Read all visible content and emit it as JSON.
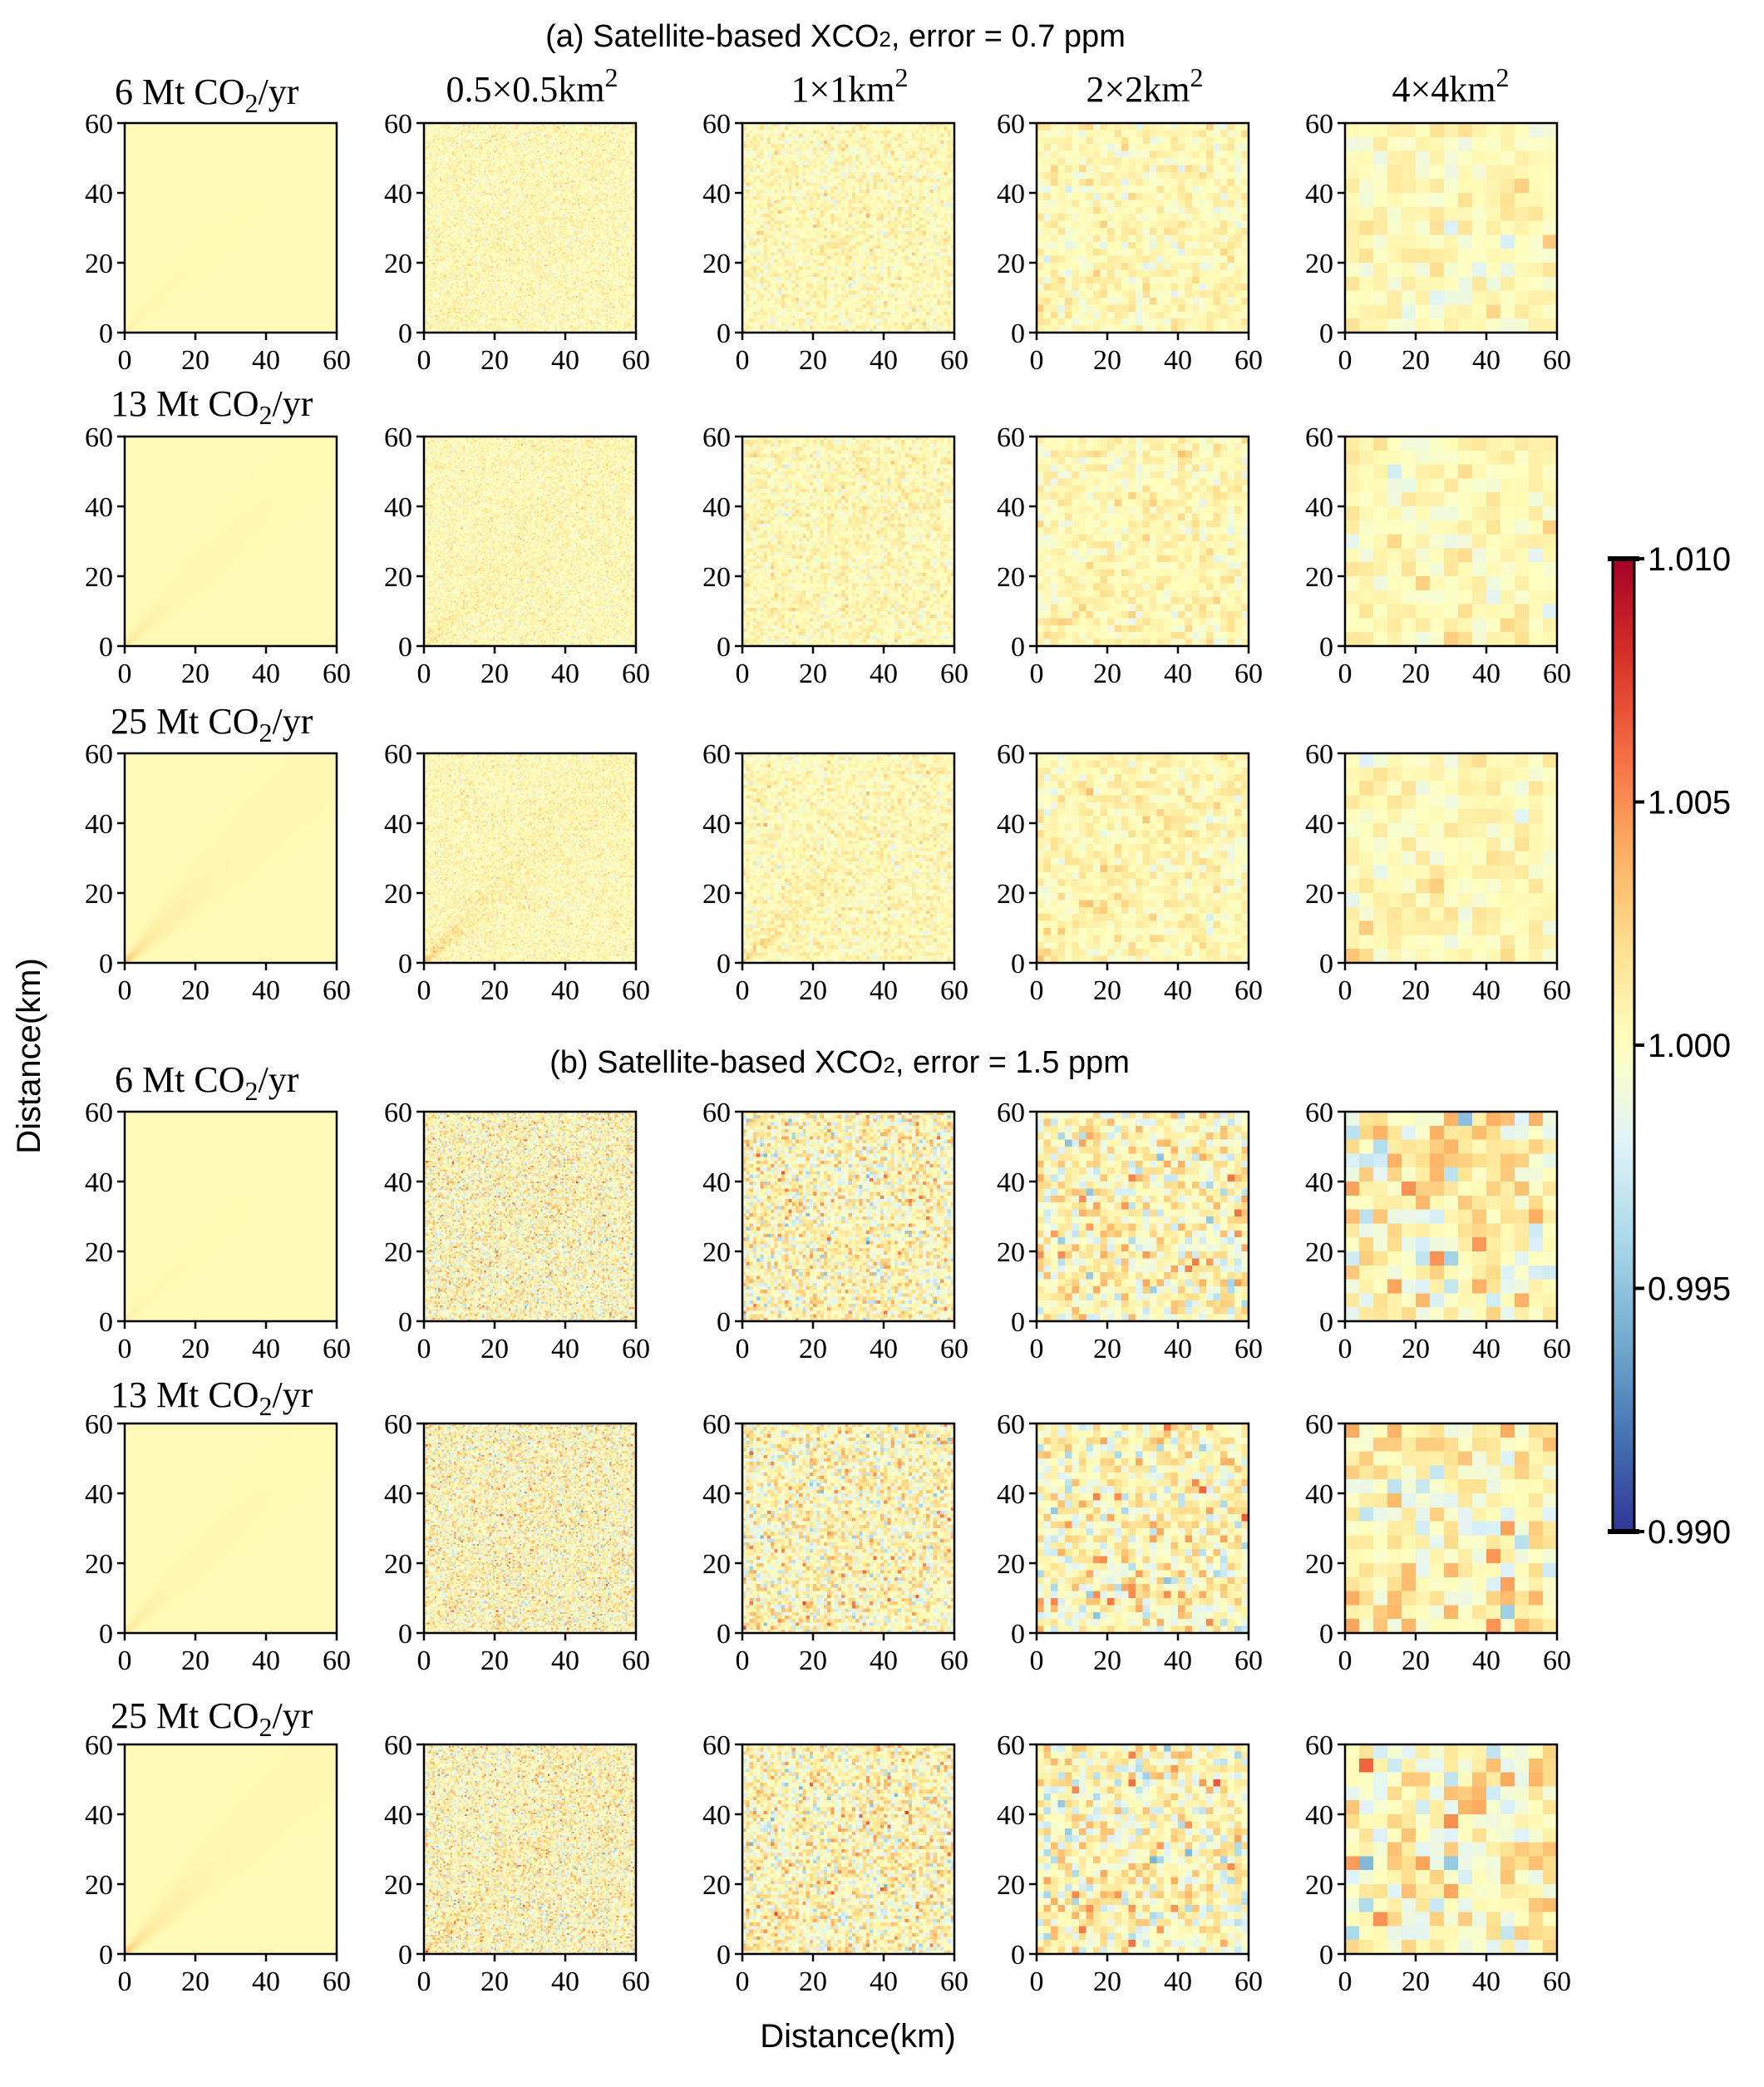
{
  "chart_data": {
    "type": "heatmap",
    "description_note": "",
    "section_titles": [
      {
        "prefix": "(a) Satellite-based XCO",
        "sub": "2",
        "suffix": ", error = 0.7 ppm"
      },
      {
        "prefix": "(b) Satellite-based XCO",
        "sub": "2",
        "suffix": ", error = 1.5 ppm"
      }
    ],
    "row_labels": [
      {
        "prefix": "6 Mt CO",
        "sub": "2",
        "suffix": "/yr",
        "emission": 6
      },
      {
        "prefix": "13 Mt CO",
        "sub": "2",
        "suffix": "/yr",
        "emission": 13
      },
      {
        "prefix": "25 Mt CO",
        "sub": "2",
        "suffix": "/yr",
        "emission": 25
      }
    ],
    "column_labels": [
      {
        "text": "",
        "sup": "",
        "cells": 120
      },
      {
        "text": "0.5×0.5km",
        "sup": "2",
        "cells": 120
      },
      {
        "text": "1×1km",
        "sup": "2",
        "cells": 60
      },
      {
        "text": "2×2km",
        "sup": "2",
        "cells": 30
      },
      {
        "text": "4×4km",
        "sup": "2",
        "cells": 15
      }
    ],
    "errors_ppm": [
      0.7,
      1.5
    ],
    "xlabel": "Distance(km)",
    "ylabel": "Distance(km)",
    "xlim": [
      0,
      60
    ],
    "ylim": [
      0,
      60
    ],
    "ticks": [
      "0",
      "20",
      "40",
      "60"
    ],
    "colorbar": {
      "min": 0.99,
      "max": 1.01,
      "ticks": [
        "1.010",
        "1.005",
        "1.000",
        "0.995",
        "0.990"
      ],
      "colormap": "RdYlBu_r"
    },
    "colormap_stops": [
      "#313695",
      "#4575b4",
      "#74add1",
      "#abd9e9",
      "#e0f3f8",
      "#ffffbf",
      "#fee090",
      "#fdae61",
      "#f46d43",
      "#d73027",
      "#a50026"
    ]
  }
}
